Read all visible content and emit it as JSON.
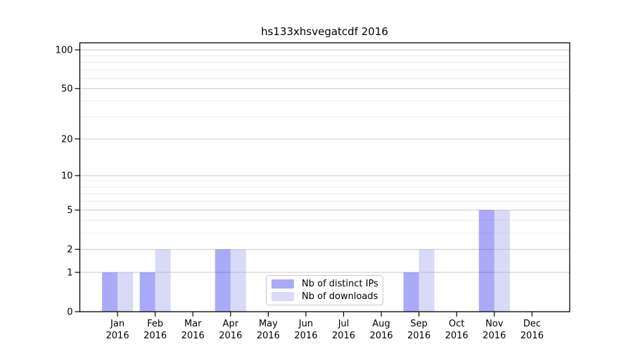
{
  "chart_data": {
    "type": "bar",
    "title": "hs133xhsvegatcdf 2016",
    "year_label": "2016",
    "categories": [
      "Jan",
      "Feb",
      "Mar",
      "Apr",
      "May",
      "Jun",
      "Jul",
      "Aug",
      "Sep",
      "Oct",
      "Nov",
      "Dec"
    ],
    "series": [
      {
        "name": "Nb of distinct IPs",
        "color": "rgba(66,66,242,0.45)",
        "color_on_white": "#aaaaf9",
        "values": [
          1,
          1,
          0,
          2,
          0,
          0,
          0,
          0,
          1,
          0,
          5,
          0
        ]
      },
      {
        "name": "Nb of downloads",
        "color": "rgba(171,171,239,0.45)",
        "color_on_white": "#d9d9f8",
        "values": [
          1,
          2,
          0,
          2,
          0,
          0,
          0,
          0,
          2,
          0,
          5,
          0
        ]
      }
    ],
    "yticks": [
      0,
      1,
      2,
      5,
      10,
      20,
      50,
      100
    ],
    "minor_yticks": [
      3,
      4,
      6,
      7,
      8,
      9,
      30,
      40,
      60,
      70,
      80,
      90
    ],
    "scale": "log1p",
    "ylim": [
      0,
      100
    ],
    "xlabel": "",
    "ylabel": "",
    "grid": {
      "major_color": "#c9c9c9",
      "minor_color": "#ececec",
      "axis_color": "#000000"
    },
    "legend": {
      "position": "lower-center-inside"
    }
  }
}
